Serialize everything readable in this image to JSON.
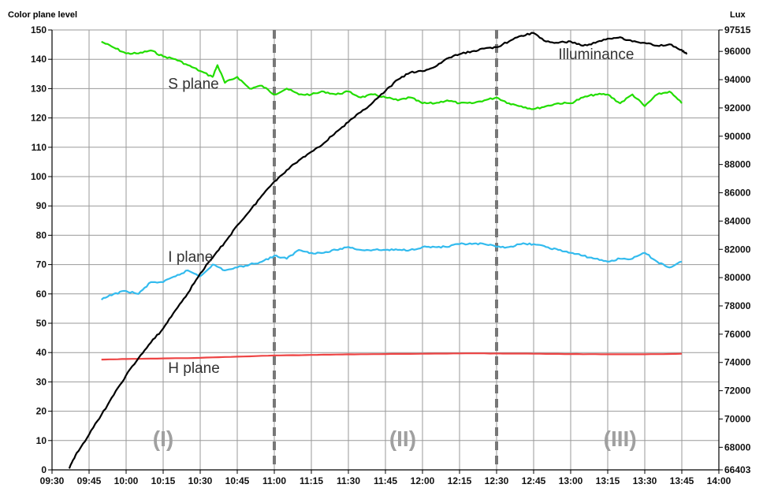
{
  "chart_data": {
    "type": "line",
    "title": "",
    "y_left_label": "Color plane level",
    "y_right_label": "Lux",
    "x_ticks": [
      "09:30",
      "09:45",
      "10:00",
      "10:15",
      "10:30",
      "10:45",
      "11:00",
      "11:15",
      "11:30",
      "11:45",
      "12:00",
      "12:15",
      "12:30",
      "12:45",
      "13:00",
      "13:15",
      "13:30",
      "13:45",
      "14:00"
    ],
    "y_left_ticks": [
      0,
      10,
      20,
      30,
      40,
      50,
      60,
      70,
      80,
      90,
      100,
      110,
      120,
      130,
      140,
      150
    ],
    "y_right_ticks": [
      "66403",
      "68000",
      "70000",
      "72000",
      "74000",
      "76000",
      "78000",
      "80000",
      "82000",
      "84000",
      "86000",
      "88000",
      "90000",
      "92000",
      "94000",
      "96000",
      "97515"
    ],
    "x_range_minutes": [
      "09:30",
      "14:00"
    ],
    "ylim_left": [
      0,
      150
    ],
    "ylim_right": [
      66403,
      97515
    ],
    "grid": true,
    "phase_dividers": [
      "11:00",
      "12:30"
    ],
    "phase_labels": [
      {
        "text": "(I)",
        "x": "10:15",
        "y": 8
      },
      {
        "text": "(II)",
        "x": "11:52",
        "y": 8
      },
      {
        "text": "(III)",
        "x": "13:20",
        "y": 8
      }
    ],
    "series_labels": [
      {
        "text": "S plane",
        "x": "10:17",
        "y": 130
      },
      {
        "text": "I plane",
        "x": "10:17",
        "y": 71
      },
      {
        "text": "H plane",
        "x": "10:17",
        "y": 33
      },
      {
        "text": "Illuminance",
        "x": "12:55",
        "y": 140
      }
    ],
    "series": [
      {
        "name": "S plane",
        "axis": "left",
        "color": "#22dd00",
        "x": [
          "09:50",
          "09:55",
          "10:00",
          "10:05",
          "10:10",
          "10:15",
          "10:20",
          "10:25",
          "10:30",
          "10:35",
          "10:37",
          "10:40",
          "10:45",
          "10:50",
          "10:55",
          "11:00",
          "11:05",
          "11:10",
          "11:15",
          "11:20",
          "11:25",
          "11:30",
          "11:35",
          "11:40",
          "11:45",
          "11:50",
          "11:55",
          "12:00",
          "12:05",
          "12:10",
          "12:15",
          "12:20",
          "12:25",
          "12:30",
          "12:35",
          "12:40",
          "12:45",
          "12:50",
          "12:55",
          "13:00",
          "13:05",
          "13:10",
          "13:15",
          "13:20",
          "13:25",
          "13:30",
          "13:35",
          "13:40",
          "13:45"
        ],
        "values": [
          146,
          144,
          142,
          142,
          143,
          141,
          140,
          138,
          136,
          134,
          138,
          132,
          134,
          130,
          131,
          128,
          130,
          128,
          128,
          129,
          128,
          129,
          127,
          128,
          127,
          126,
          127,
          125,
          125,
          126,
          125,
          125,
          126,
          127,
          125,
          124,
          123,
          124,
          125,
          125,
          127,
          128,
          128,
          125,
          128,
          124,
          128,
          129,
          125
        ]
      },
      {
        "name": "I plane",
        "axis": "left",
        "color": "#33bbee",
        "x": [
          "09:50",
          "09:55",
          "10:00",
          "10:05",
          "10:10",
          "10:15",
          "10:20",
          "10:25",
          "10:30",
          "10:35",
          "10:40",
          "10:45",
          "10:50",
          "10:55",
          "11:00",
          "11:05",
          "11:10",
          "11:15",
          "11:20",
          "11:25",
          "11:30",
          "11:35",
          "11:40",
          "11:45",
          "11:50",
          "11:55",
          "12:00",
          "12:05",
          "12:10",
          "12:15",
          "12:20",
          "12:25",
          "12:30",
          "12:35",
          "12:40",
          "12:45",
          "12:50",
          "12:55",
          "13:00",
          "13:05",
          "13:10",
          "13:15",
          "13:20",
          "13:25",
          "13:30",
          "13:35",
          "13:40",
          "13:45"
        ],
        "values": [
          58,
          60,
          61,
          60,
          64,
          64,
          66,
          68,
          66,
          70,
          68,
          69,
          70,
          71,
          73,
          72,
          75,
          74,
          74,
          75,
          76,
          75,
          75,
          75,
          75,
          75,
          76,
          76,
          76,
          77,
          77,
          77,
          76,
          76,
          77,
          77,
          76,
          75,
          74,
          73,
          72,
          71,
          72,
          72,
          74,
          71,
          69,
          71
        ]
      },
      {
        "name": "H plane",
        "axis": "left",
        "color": "#ee4444",
        "x": [
          "09:50",
          "10:00",
          "10:15",
          "10:30",
          "10:45",
          "11:00",
          "11:15",
          "11:30",
          "11:45",
          "12:00",
          "12:15",
          "12:30",
          "12:45",
          "13:00",
          "13:15",
          "13:30",
          "13:45"
        ],
        "values": [
          37.6,
          37.8,
          38.0,
          38.2,
          38.6,
          39.0,
          39.2,
          39.4,
          39.5,
          39.6,
          39.7,
          39.7,
          39.6,
          39.5,
          39.4,
          39.4,
          39.6
        ]
      },
      {
        "name": "Illuminance",
        "axis": "right",
        "color": "#000000",
        "x": [
          "09:37",
          "09:40",
          "09:45",
          "09:50",
          "09:55",
          "10:00",
          "10:05",
          "10:10",
          "10:15",
          "10:20",
          "10:25",
          "10:30",
          "10:35",
          "10:40",
          "10:45",
          "10:50",
          "10:55",
          "11:00",
          "11:05",
          "11:10",
          "11:15",
          "11:20",
          "11:25",
          "11:30",
          "11:35",
          "11:40",
          "11:45",
          "11:50",
          "11:55",
          "12:00",
          "12:05",
          "12:10",
          "12:15",
          "12:20",
          "12:25",
          "12:30",
          "12:35",
          "12:40",
          "12:45",
          "12:50",
          "12:55",
          "13:00",
          "13:05",
          "13:10",
          "13:15",
          "13:20",
          "13:25",
          "13:30",
          "13:35",
          "13:40",
          "13:45",
          "13:47"
        ],
        "values": [
          66500,
          67600,
          68900,
          70300,
          71700,
          73100,
          74300,
          75400,
          76400,
          77700,
          78900,
          80300,
          81400,
          82500,
          83700,
          84700,
          85800,
          86800,
          87600,
          88300,
          88900,
          89500,
          90300,
          91000,
          91700,
          92400,
          93200,
          94000,
          94500,
          94600,
          94900,
          95500,
          95800,
          96000,
          96200,
          96300,
          96700,
          97100,
          97300,
          96700,
          96600,
          96700,
          96400,
          96600,
          96900,
          97000,
          96700,
          96600,
          96400,
          96500,
          96100,
          95800
        ]
      }
    ]
  }
}
